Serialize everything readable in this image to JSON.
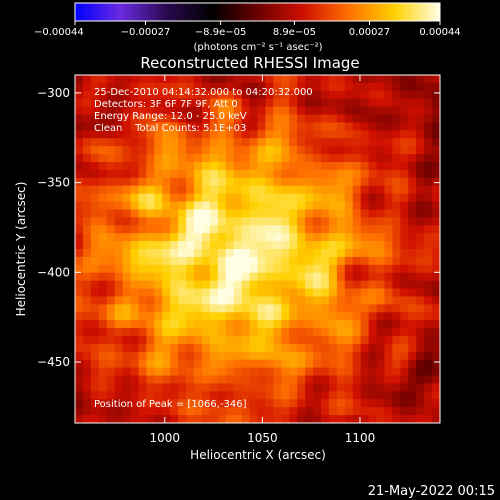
{
  "chart_data": {
    "type": "heatmap",
    "title": "Reconstructed RHESSI Image",
    "xlabel": "Heliocentric X (arcsec)",
    "ylabel": "Heliocentric Y (arcsec)",
    "xlim": [
      954,
      1141
    ],
    "ylim": [
      -484,
      -290
    ],
    "x_ticks": [
      1000,
      1050,
      1100
    ],
    "x_tick_labels": [
      "1000",
      "1050",
      "1100"
    ],
    "y_ticks": [
      -300,
      -350,
      -400,
      -450
    ],
    "y_tick_labels": [
      "−300",
      "−350",
      "−400",
      "−450"
    ],
    "colorbar": {
      "range": [
        -0.00044,
        0.00044
      ],
      "ticks": [
        -0.00044,
        -0.00027,
        -8.9e-05,
        8.9e-05,
        0.00027,
        0.00044
      ],
      "tick_labels": [
        "−0.00044",
        "−0.00027",
        "−8.9e−05",
        "8.9e−05",
        "0.00027",
        "0.00044"
      ],
      "unit_label": "(photons cm⁻² s⁻¹ asec⁻²)",
      "colormap": [
        "#0000ff",
        "#6a2ae0",
        "#2a0a50",
        "#000000",
        "#6a0000",
        "#d01000",
        "#ff7000",
        "#ffd000",
        "#ffffe6"
      ]
    },
    "annotations": {
      "time_range": "25-Dec-2010 04:14:32.000 to 04:20:32.000",
      "detectors": "Detectors: 3F 6F 7F 9F, Att 0",
      "energy_range": "Energy Range: 12.0 - 25.0 keV",
      "method": "Clean    Total Counts: 5.1E+03",
      "peak": "Position of Peak = [1066,-346]"
    },
    "peak_position": [
      1066,
      -346
    ]
  },
  "footer": {
    "timestamp": "21-May-2022 00:15"
  }
}
